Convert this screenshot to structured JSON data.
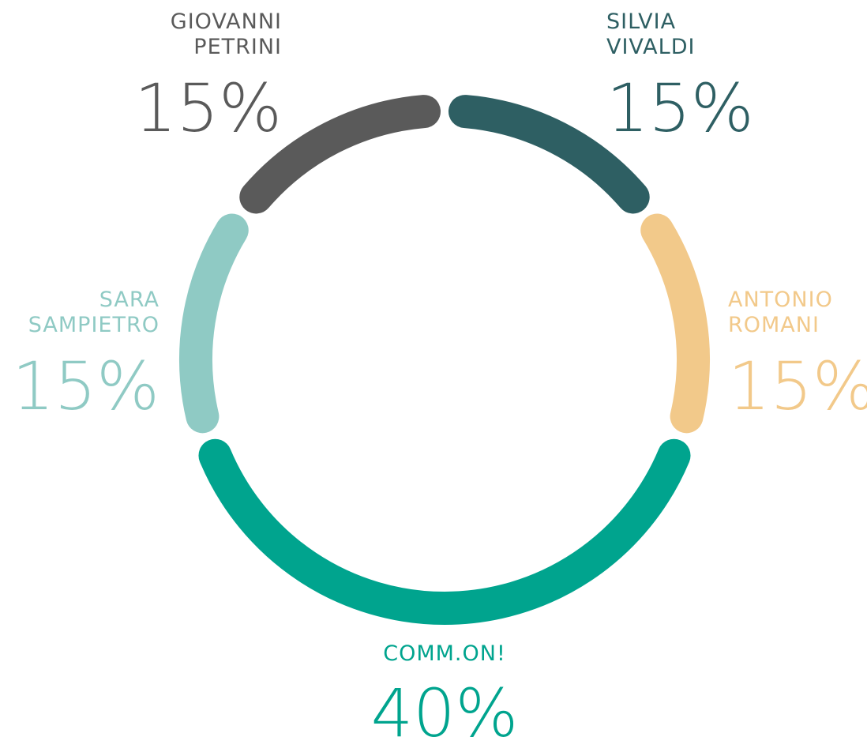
{
  "chart_data": {
    "type": "pie",
    "donut": true,
    "categories": [
      "SILVIA VIVALDI",
      "ANTONIO ROMANI",
      "COMM.ON!",
      "SARA SAMPIETRO",
      "GIOVANNI PETRINI"
    ],
    "values": [
      15,
      15,
      40,
      15,
      15
    ],
    "value_labels": [
      "15%",
      "15%",
      "40%",
      "15%",
      "15%"
    ],
    "colors": [
      "#2e5f63",
      "#f2c98a",
      "#00a48e",
      "#8fcac4",
      "#5a5a5a"
    ]
  }
}
